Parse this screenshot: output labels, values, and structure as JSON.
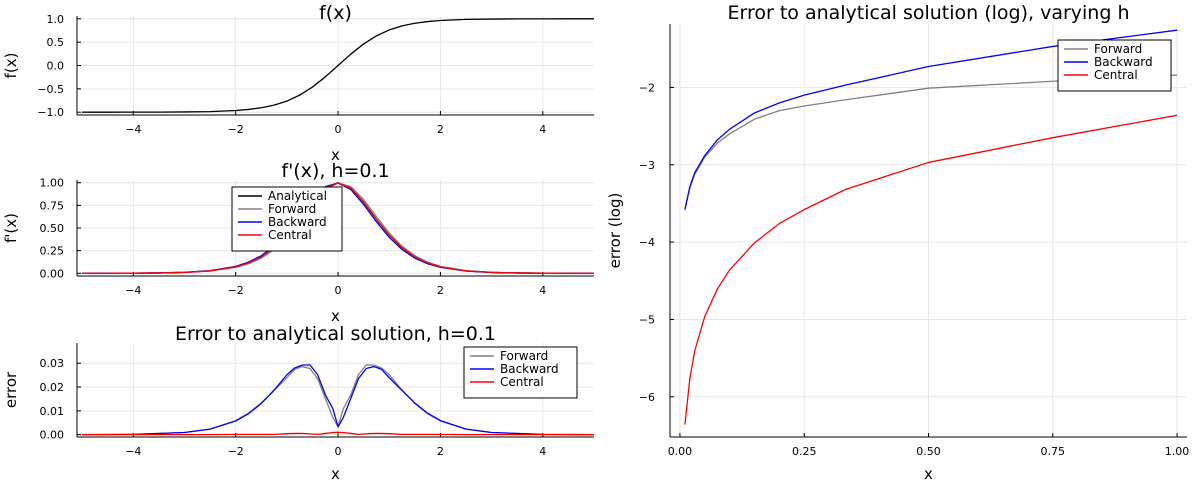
{
  "chart_data": [
    {
      "type": "line",
      "title": "f(x)",
      "xlabel": "x",
      "ylabel": "f(x)",
      "xlim": [
        -5.1,
        5
      ],
      "ylim": [
        -1.06,
        1.06
      ],
      "xticks": [
        -4,
        -2,
        0,
        2,
        4
      ],
      "xtick_labels": [
        "−4",
        "−2",
        "0",
        "2",
        "4"
      ],
      "yticks": [
        -1.0,
        -0.5,
        0.0,
        0.5,
        1.0
      ],
      "ytick_labels": [
        "−1.0",
        "−0.5",
        "0.0",
        "0.5",
        "1.0"
      ],
      "grid": true,
      "legend": "none",
      "series": [
        {
          "color": "#000000",
          "x": [
            -5,
            -4.5,
            -4,
            -3.5,
            -3,
            -2.5,
            -2,
            -1.75,
            -1.5,
            -1.25,
            -1,
            -0.75,
            -0.5,
            -0.25,
            0,
            0.25,
            0.5,
            0.75,
            1,
            1.25,
            1.5,
            1.75,
            2,
            2.5,
            3,
            3.5,
            4,
            4.5,
            5
          ],
          "y": [
            -1.0,
            -1.0,
            -0.999,
            -0.998,
            -0.995,
            -0.987,
            -0.964,
            -0.941,
            -0.905,
            -0.848,
            -0.762,
            -0.635,
            -0.462,
            -0.245,
            0.0,
            0.245,
            0.462,
            0.635,
            0.762,
            0.848,
            0.905,
            0.941,
            0.964,
            0.987,
            0.995,
            0.998,
            0.999,
            1.0,
            1.0
          ]
        }
      ]
    },
    {
      "type": "line",
      "title": "f'(x), h=0.1",
      "xlabel": "x",
      "ylabel": "f'(x)",
      "xlim": [
        -5.1,
        5
      ],
      "ylim": [
        -0.03,
        1.03
      ],
      "xticks": [
        -4,
        -2,
        0,
        2,
        4
      ],
      "xtick_labels": [
        "−4",
        "−2",
        "0",
        "2",
        "4"
      ],
      "yticks": [
        0.0,
        0.25,
        0.5,
        0.75,
        1.0
      ],
      "ytick_labels": [
        "0.00",
        "0.25",
        "0.50",
        "0.75",
        "1.00"
      ],
      "grid": true,
      "legend": "top-left-center",
      "x": [
        -5,
        -4.5,
        -4,
        -3.5,
        -3,
        -2.5,
        -2,
        -1.75,
        -1.5,
        -1.25,
        -1,
        -0.75,
        -0.5,
        -0.25,
        0,
        0.25,
        0.5,
        0.75,
        1,
        1.25,
        1.5,
        1.75,
        2,
        2.5,
        3,
        3.5,
        4,
        4.5,
        5
      ],
      "series": [
        {
          "name": "Analytical",
          "color": "#000000",
          "y": [
            0.0002,
            0.0005,
            0.0013,
            0.0036,
            0.0099,
            0.0266,
            0.0707,
            0.1145,
            0.1807,
            0.2809,
            0.42,
            0.5966,
            0.7864,
            0.9399,
            1.0,
            0.9399,
            0.7864,
            0.5966,
            0.42,
            0.2809,
            0.1807,
            0.1145,
            0.0707,
            0.0266,
            0.0099,
            0.0036,
            0.0013,
            0.0005,
            0.0002
          ]
        },
        {
          "name": "Forward",
          "color": "#808080",
          "y": [
            0.0002,
            0.0005,
            0.0012,
            0.0033,
            0.009,
            0.0243,
            0.0648,
            0.1055,
            0.1674,
            0.2624,
            0.3961,
            0.5683,
            0.7605,
            0.9246,
            0.9967,
            0.9567,
            0.8137,
            0.6256,
            0.4451,
            0.2996,
            0.1938,
            0.1233,
            0.0764,
            0.0289,
            0.0108,
            0.004,
            0.0014,
            0.0005,
            0.0002
          ]
        },
        {
          "name": "Backward",
          "color": "#0000ff",
          "y": [
            0.0002,
            0.0005,
            0.0014,
            0.0039,
            0.0108,
            0.0289,
            0.0764,
            0.1233,
            0.1938,
            0.2996,
            0.4451,
            0.6256,
            0.8137,
            0.9567,
            0.9967,
            0.9246,
            0.7605,
            0.5683,
            0.3961,
            0.2624,
            0.1674,
            0.1055,
            0.0648,
            0.0243,
            0.009,
            0.0033,
            0.0012,
            0.0005,
            0.0002
          ]
        },
        {
          "name": "Central",
          "color": "#ff0000",
          "y": [
            0.0002,
            0.0005,
            0.0013,
            0.0036,
            0.0099,
            0.0266,
            0.0706,
            0.1144,
            0.1806,
            0.281,
            0.4206,
            0.597,
            0.7871,
            0.9407,
            0.9967,
            0.9407,
            0.7871,
            0.597,
            0.4206,
            0.281,
            0.1806,
            0.1144,
            0.0706,
            0.0266,
            0.0099,
            0.0036,
            0.0013,
            0.0005,
            0.0002
          ]
        }
      ]
    },
    {
      "type": "line",
      "title": "Error to analytical solution, h=0.1",
      "xlabel": "x",
      "ylabel": "error",
      "xlim": [
        -5.1,
        5
      ],
      "ylim": [
        -0.001,
        0.0385
      ],
      "xticks": [
        -4,
        -2,
        0,
        2,
        4
      ],
      "xtick_labels": [
        "−4",
        "−2",
        "0",
        "2",
        "4"
      ],
      "yticks": [
        0.0,
        0.01,
        0.02,
        0.03
      ],
      "ytick_labels": [
        "0.00",
        "0.01",
        "0.02",
        "0.03"
      ],
      "grid": true,
      "legend": "top-right",
      "x": [
        -5,
        -4,
        -3,
        -2.5,
        -2,
        -1.75,
        -1.5,
        -1.25,
        -1,
        -0.85,
        -0.7,
        -0.55,
        -0.4,
        -0.25,
        -0.1,
        0,
        0.1,
        0.25,
        0.4,
        0.55,
        0.7,
        0.85,
        1,
        1.25,
        1.5,
        1.75,
        2,
        2.5,
        3,
        4,
        5
      ],
      "series": [
        {
          "name": "Forward",
          "color": "#808080",
          "y": [
            0.0,
            0.0001,
            0.0009,
            0.0023,
            0.0059,
            0.009,
            0.0133,
            0.0185,
            0.0239,
            0.0274,
            0.0286,
            0.0278,
            0.0236,
            0.0153,
            0.0071,
            0.0033,
            0.0108,
            0.0168,
            0.0252,
            0.0293,
            0.0292,
            0.028,
            0.0251,
            0.0187,
            0.0131,
            0.0088,
            0.0057,
            0.0023,
            0.0009,
            0.0001,
            0.0
          ]
        },
        {
          "name": "Backward",
          "color": "#0000ff",
          "y": [
            0.0,
            0.0001,
            0.0009,
            0.0023,
            0.0057,
            0.0088,
            0.0131,
            0.0187,
            0.0251,
            0.028,
            0.0292,
            0.0293,
            0.0252,
            0.0168,
            0.0108,
            0.0033,
            0.0071,
            0.0153,
            0.0236,
            0.0278,
            0.0286,
            0.0274,
            0.0239,
            0.0185,
            0.0133,
            0.009,
            0.0059,
            0.0023,
            0.0009,
            0.0001,
            0.0
          ]
        },
        {
          "name": "Central",
          "color": "#ff0000",
          "y": [
            0.0,
            0.0,
            0.0,
            0.0,
            0.0001,
            0.0001,
            0.0001,
            0.0001,
            0.0004,
            0.0005,
            0.0005,
            0.0003,
            0.0001,
            0.0005,
            0.0009,
            0.001,
            0.0009,
            0.0005,
            0.0001,
            0.0003,
            0.0005,
            0.0005,
            0.0004,
            0.0001,
            0.0001,
            0.0001,
            0.0001,
            0.0,
            0.0,
            0.0,
            0.0
          ]
        }
      ]
    },
    {
      "type": "line",
      "title": "Error to analytical solution (log), varying h",
      "xlabel": "x",
      "ylabel": "error (log)",
      "xlim": [
        -0.02,
        1.02
      ],
      "ylim": [
        -6.52,
        -1.18
      ],
      "xticks": [
        0.0,
        0.25,
        0.5,
        0.75,
        1.0
      ],
      "xtick_labels": [
        "0.00",
        "0.25",
        "0.50",
        "0.75",
        "1.00"
      ],
      "yticks": [
        -6,
        -5,
        -4,
        -3,
        -2
      ],
      "ytick_labels": [
        "−6",
        "−5",
        "−4",
        "−3",
        "−2"
      ],
      "grid": true,
      "legend": "top-right",
      "x": [
        0.01,
        0.02,
        0.03,
        0.05,
        0.075,
        0.1,
        0.15,
        0.2,
        0.25,
        0.333,
        0.5,
        0.75,
        1.0
      ],
      "series": [
        {
          "name": "Forward",
          "color": "#808080",
          "y": [
            -3.58,
            -3.3,
            -3.12,
            -2.9,
            -2.72,
            -2.6,
            -2.41,
            -2.3,
            -2.24,
            -2.16,
            -2.01,
            -1.92,
            -1.84
          ]
        },
        {
          "name": "Backward",
          "color": "#0000ff",
          "y": [
            -3.58,
            -3.28,
            -3.1,
            -2.88,
            -2.68,
            -2.54,
            -2.33,
            -2.2,
            -2.1,
            -1.97,
            -1.73,
            -1.47,
            -1.26
          ]
        },
        {
          "name": "Central",
          "color": "#ff0000",
          "y": [
            -6.36,
            -5.76,
            -5.4,
            -4.96,
            -4.61,
            -4.36,
            -4.01,
            -3.76,
            -3.58,
            -3.32,
            -2.97,
            -2.65,
            -2.36
          ]
        }
      ]
    }
  ]
}
